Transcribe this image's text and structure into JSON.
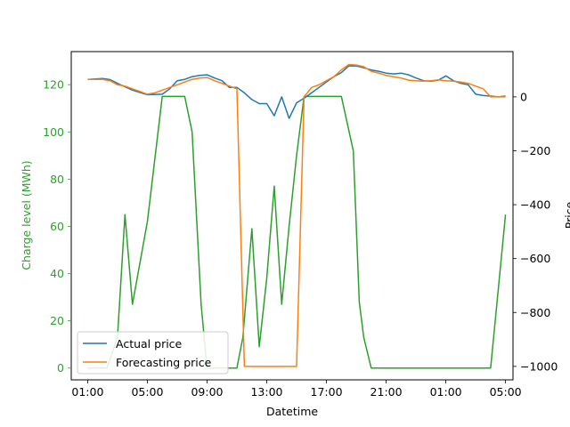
{
  "chart_data": {
    "type": "line",
    "xlabel": "Datetime",
    "ylabel_left": "Charge level (MWh)",
    "ylabel_right": "Price",
    "x_ticks": [
      "01:00",
      "05:00",
      "09:00",
      "13:00",
      "17:00",
      "21:00",
      "01:00",
      "05:00"
    ],
    "x_tick_hours": [
      1,
      5,
      9,
      13,
      17,
      21,
      25,
      29
    ],
    "xlim": [
      -0.1,
      29.5
    ],
    "ylim_left": [
      -5,
      134
    ],
    "ylim_right": [
      -1050,
      168
    ],
    "left_ticks": [
      0,
      20,
      40,
      60,
      80,
      100,
      120
    ],
    "right_ticks": [
      0,
      -200,
      -400,
      -600,
      -800,
      -1000
    ],
    "colors": {
      "charge": "#2ca02c",
      "actual": "#1f77b4",
      "forecast": "#ff7f0e"
    },
    "legend": {
      "placement": "lower-left",
      "entries": [
        "Actual price",
        "Forecasting price"
      ]
    },
    "series": [
      {
        "name": "Charge level",
        "axis": "left",
        "hours": [
          1,
          2.3,
          3,
          3.5,
          4,
          5,
          6,
          7.5,
          8,
          8.6,
          9,
          10,
          11,
          11.4,
          12,
          12.5,
          13,
          13.5,
          14,
          14.5,
          15,
          15.5,
          16.3,
          17,
          18,
          18.8,
          19.2,
          19.5,
          20,
          21,
          22,
          23,
          24,
          25,
          26,
          27,
          28,
          29
        ],
        "values": [
          0,
          0,
          13,
          65,
          27,
          62,
          115,
          115,
          100,
          27,
          0,
          0,
          0,
          13,
          59,
          9,
          38,
          77,
          27,
          60,
          90,
          115,
          115,
          115,
          115,
          92,
          28,
          13,
          0,
          0,
          0,
          0,
          0,
          0,
          0,
          0,
          0,
          65
        ]
      },
      {
        "name": "Actual price",
        "axis": "right",
        "hours": [
          1,
          2,
          2.5,
          3,
          4,
          5,
          6,
          6.5,
          7,
          7.5,
          8,
          8.5,
          9,
          9.5,
          10,
          10.5,
          11,
          11.5,
          12,
          12.5,
          13,
          13.5,
          14,
          14.5,
          15,
          15.5,
          16,
          16.5,
          17,
          17.5,
          18,
          18.5,
          19,
          19.5,
          20,
          20.5,
          21,
          21.5,
          22,
          22.5,
          23,
          23.5,
          24,
          24.5,
          25,
          25.5,
          26,
          26.5,
          27,
          27.5,
          28,
          28.5,
          29
        ],
        "values": [
          65,
          68,
          64,
          50,
          25,
          8,
          10,
          30,
          60,
          65,
          75,
          80,
          82,
          70,
          60,
          35,
          35,
          15,
          -10,
          -25,
          -25,
          -70,
          0,
          -80,
          -22,
          -5,
          15,
          35,
          55,
          75,
          90,
          115,
          115,
          108,
          100,
          95,
          88,
          85,
          88,
          82,
          70,
          60,
          58,
          62,
          78,
          60,
          50,
          45,
          10,
          5,
          3,
          0,
          3
        ]
      },
      {
        "name": "Forecasting price",
        "axis": "right",
        "hours": [
          1,
          1.5,
          2,
          2.5,
          3,
          3.5,
          4,
          4.5,
          5,
          5.5,
          6,
          6.5,
          7,
          7.5,
          8,
          8.5,
          9,
          9.5,
          10,
          10.5,
          11,
          11.5,
          12,
          12.5,
          13,
          13.5,
          14,
          14.5,
          15,
          15.5,
          16,
          16.5,
          17,
          17.5,
          18,
          18.5,
          19,
          19.5,
          20,
          20.5,
          21,
          21.5,
          22,
          22.5,
          23,
          23.5,
          24,
          24.5,
          25,
          25.5,
          26,
          26.5,
          27,
          27.5,
          28,
          28.5,
          29
        ],
        "values": [
          65,
          65,
          65,
          60,
          45,
          40,
          30,
          20,
          10,
          15,
          25,
          35,
          45,
          55,
          65,
          70,
          72,
          60,
          50,
          40,
          30,
          -1000,
          -1000,
          -1000,
          -1000,
          -1000,
          -1000,
          -1000,
          -1000,
          0,
          35,
          45,
          60,
          75,
          100,
          120,
          118,
          112,
          95,
          88,
          80,
          75,
          70,
          62,
          60,
          58,
          60,
          63,
          60,
          58,
          55,
          50,
          40,
          30,
          0,
          0,
          0
        ]
      }
    ]
  }
}
